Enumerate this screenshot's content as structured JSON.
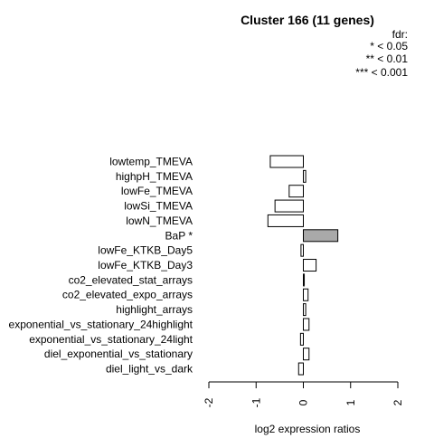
{
  "chart_data": {
    "type": "bar",
    "orientation": "horizontal",
    "title": "Cluster 166 (11 genes)",
    "xlabel": "log2 expression ratios",
    "ylabel": "",
    "xlim": [
      -2,
      2
    ],
    "xticks": [
      "-2",
      "-1",
      "0",
      "1",
      "2"
    ],
    "grid": false,
    "legend": {
      "placement": "top-right",
      "title": "fdr:",
      "entries": [
        "* < 0.05",
        "** < 0.01",
        "*** < 0.001"
      ]
    },
    "categories": [
      "lowtemp_TMEVA",
      "highpH_TMEVA",
      "lowFe_TMEVA",
      "lowSi_TMEVA",
      "lowN_TMEVA",
      "BaP *",
      "lowFe_KTKB_Day5",
      "lowFe_KTKB_Day3",
      "co2_elevated_stat_arrays",
      "co2_elevated_expo_arrays",
      "highlight_arrays",
      "exponential_vs_stationary_24highlight",
      "exponential_vs_stationary_24light",
      "diel_exponential_vs_stationary",
      "diel_light_vs_dark"
    ],
    "values": [
      -0.7,
      0.05,
      -0.3,
      -0.6,
      -0.75,
      0.73,
      -0.05,
      0.27,
      0.02,
      0.1,
      0.05,
      0.12,
      -0.06,
      0.12,
      -0.1
    ],
    "significant": [
      false,
      false,
      false,
      false,
      false,
      true,
      false,
      false,
      false,
      false,
      false,
      false,
      false,
      false,
      false
    ],
    "colors": {
      "significant": "#a9a9a9",
      "normal": "#ffffff",
      "stroke": "#000000"
    }
  }
}
